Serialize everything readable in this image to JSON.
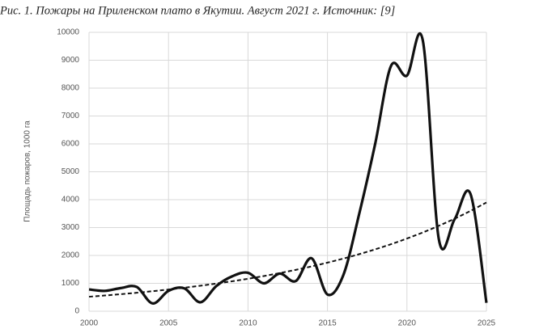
{
  "chart_data": {
    "type": "line",
    "title": "Рис. 1. Пожары на Приленском плато в Якутии. Август 2021 г. Источник: [9]",
    "y_label": "Площадь пожаров, 1000 га",
    "x": [
      2000,
      2001,
      2002,
      2003,
      2004,
      2005,
      2006,
      2007,
      2008,
      2009,
      2010,
      2011,
      2012,
      2013,
      2014,
      2015,
      2016,
      2017,
      2018,
      2019,
      2020,
      2021,
      2022,
      2023,
      2024,
      2025
    ],
    "series": [
      {
        "color": "#111111",
        "dashed": false,
        "smooth": true,
        "values": [
          780,
          730,
          830,
          870,
          280,
          730,
          820,
          320,
          900,
          1250,
          1380,
          1000,
          1350,
          1080,
          1900,
          600,
          1300,
          3500,
          6000,
          8800,
          8450,
          9700,
          2600,
          3300,
          4200,
          300
        ]
      },
      {
        "color": "#111111",
        "dashed": true,
        "smooth": true,
        "values": [
          520,
          564,
          611,
          662,
          718,
          778,
          843,
          914,
          991,
          1074,
          1164,
          1262,
          1368,
          1483,
          1607,
          1742,
          1888,
          2047,
          2218,
          2404,
          2607,
          2825,
          3062,
          3319,
          3598,
          3900
        ]
      }
    ],
    "xlim": [
      2000,
      2025
    ],
    "xticks": [
      2000,
      2005,
      2010,
      2015,
      2020,
      2025
    ],
    "ylim": [
      0,
      10000
    ],
    "yticks": [
      0,
      1000,
      2000,
      3000,
      4000,
      5000,
      6000,
      7000,
      8000,
      9000,
      10000
    ],
    "grid": true
  }
}
